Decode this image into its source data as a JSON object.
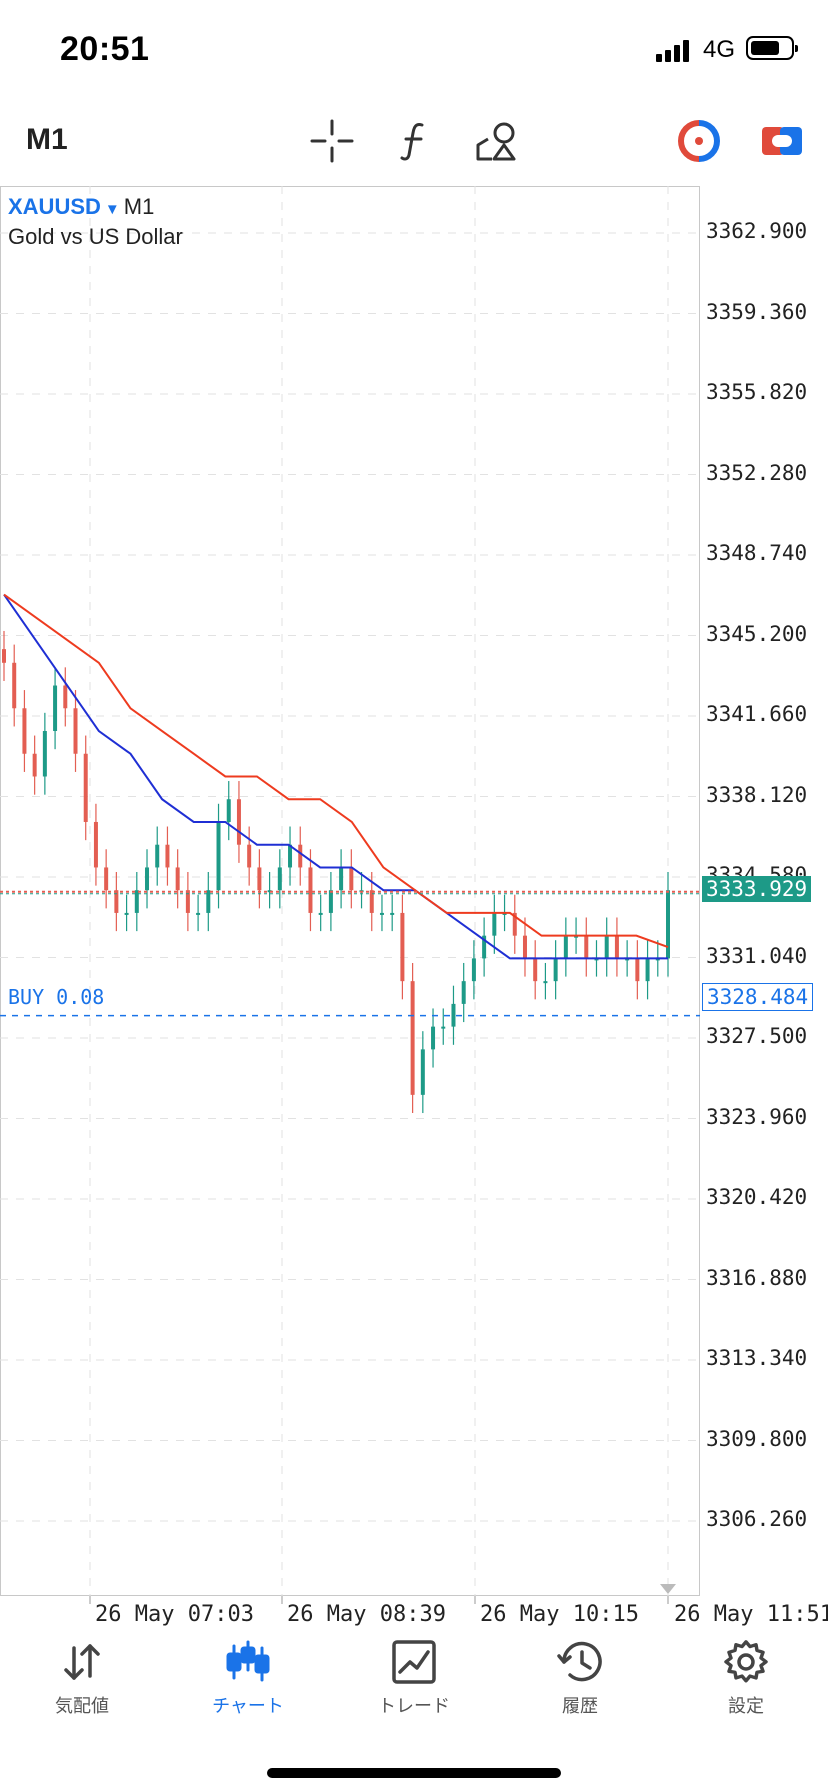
{
  "status": {
    "time": "20:51",
    "network": "4G"
  },
  "toolbar": {
    "timeframe": "M1",
    "icons": [
      "crosshair-icon",
      "indicator-function-icon",
      "objects-shapes-icon",
      "one-click-trading-icon",
      "account-switch-icon"
    ],
    "accent_colors": {
      "one_click": "#e04a3b",
      "account": "#e04a3b",
      "blue": "#1a73e8"
    }
  },
  "chart": {
    "symbol": "XAUUSD",
    "period": "M1",
    "description": "Gold vs US Dollar",
    "price_labels": [
      "3362.900",
      "3359.360",
      "3355.820",
      "3352.280",
      "3348.740",
      "3345.200",
      "3341.660",
      "3338.120",
      "3334.580",
      "3331.040",
      "3327.500",
      "3323.960",
      "3320.420",
      "3316.880",
      "3313.340",
      "3309.800",
      "3306.260"
    ],
    "bid_price": "3333.929",
    "buy_position": {
      "label": "BUY 0.08",
      "price": "3328.484"
    },
    "time_labels": [
      "26 May 07:03",
      "26 May 08:39",
      "26 May 10:15",
      "26 May 11:51"
    ],
    "colors": {
      "bull": "#1d9a87",
      "bear": "#e35e52",
      "ma_fast": "#1f2fd4",
      "ma_slow": "#ee3b1f",
      "bid_tag": "#1d9a87",
      "buy": "#1a73e8"
    }
  },
  "chart_data": {
    "type": "candlestick",
    "symbol": "XAUUSD",
    "period": "M1",
    "ylim": [
      3303.0,
      3366.0
    ],
    "close_series_approx": [
      3344,
      3342,
      3340,
      3339,
      3341,
      3343,
      3342,
      3340,
      3337,
      3335,
      3334,
      3333,
      3333,
      3334,
      3335,
      3336,
      3335,
      3334,
      3333,
      3333,
      3334,
      3337,
      3338,
      3336,
      3335,
      3334,
      3334,
      3335,
      3336,
      3335,
      3333,
      3333,
      3334,
      3335,
      3334,
      3334,
      3333,
      3333,
      3333,
      3330,
      3325,
      3327,
      3328,
      3328,
      3329,
      3330,
      3331,
      3332,
      3333,
      3333,
      3332,
      3331,
      3330,
      3330,
      3331,
      3332,
      3332,
      3331,
      3331,
      3332,
      3331,
      3331,
      3330,
      3331,
      3331,
      3334
    ],
    "moving_averages": [
      {
        "color": "#1f2fd4",
        "values": [
          3347,
          3345,
          3343,
          3341,
          3340,
          3338,
          3337,
          3337,
          3336,
          3336,
          3335,
          3335,
          3334,
          3334,
          3333,
          3332,
          3331,
          3331,
          3331,
          3331,
          3331,
          3331
        ]
      },
      {
        "color": "#ee3b1f",
        "values": [
          3347,
          3346,
          3345,
          3344,
          3342,
          3341,
          3340,
          3339,
          3339,
          3338,
          3338,
          3337,
          3335,
          3334,
          3333,
          3333,
          3333,
          3332,
          3332,
          3332,
          3332,
          3331.5
        ]
      }
    ],
    "bid": 3333.929,
    "buy_level": 3328.484
  },
  "bottom_nav": [
    {
      "label": "気配値",
      "icon": "quotes-arrows-icon",
      "active": false
    },
    {
      "label": "チャート",
      "icon": "chart-candles-icon",
      "active": true
    },
    {
      "label": "トレード",
      "icon": "trade-chart-icon",
      "active": false
    },
    {
      "label": "履歴",
      "icon": "history-clock-icon",
      "active": false
    },
    {
      "label": "設定",
      "icon": "settings-gear-icon",
      "active": false
    }
  ]
}
